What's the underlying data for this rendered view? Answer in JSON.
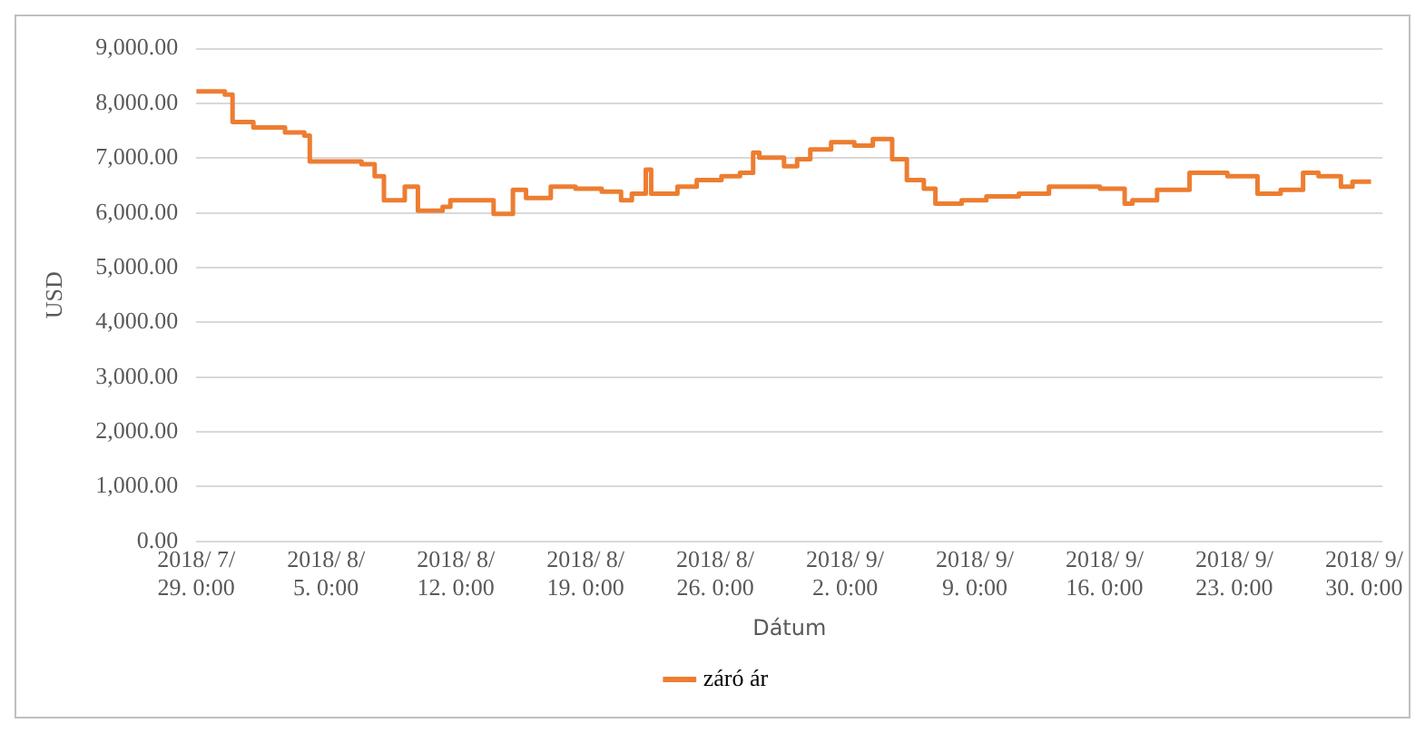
{
  "chart_data": {
    "type": "step",
    "xlabel": "Dátum",
    "ylabel": "USD",
    "x": [
      "2018-07-29T00:00",
      "2018-07-30T13:00",
      "2018-07-30T23:00",
      "2018-08-01T02:00",
      "2018-08-02T19:00",
      "2018-08-03T20:00",
      "2018-08-04T03:00",
      "2018-08-05T14:00",
      "2018-08-06T22:00",
      "2018-08-07T15:00",
      "2018-08-08T03:00",
      "2018-08-09T06:00",
      "2018-08-09T23:00",
      "2018-08-11T07:00",
      "2018-08-11T17:00",
      "2018-08-13T01:00",
      "2018-08-14T01:00",
      "2018-08-15T02:00",
      "2018-08-15T19:00",
      "2018-08-17T03:00",
      "2018-08-18T11:00",
      "2018-08-19T21:00",
      "2018-08-20T22:00",
      "2018-08-21T12:00",
      "2018-08-22T06:00",
      "2018-08-22T13:00",
      "2018-08-23T23:00",
      "2018-08-25T00:00",
      "2018-08-26T08:00",
      "2018-08-27T08:00",
      "2018-08-28T01:00",
      "2018-08-28T09:00",
      "2018-08-29T17:00",
      "2018-08-30T10:00",
      "2018-08-31T03:00",
      "2018-09-01T06:00",
      "2018-09-02T12:00",
      "2018-09-03T12:00",
      "2018-09-04T13:00",
      "2018-09-05T08:00",
      "2018-09-06T06:00",
      "2018-09-06T21:00",
      "2018-09-08T07:00",
      "2018-09-09T15:00",
      "2018-09-11T09:00",
      "2018-09-13T00:00",
      "2018-09-14T01:00",
      "2018-09-15T18:00",
      "2018-09-17T02:00",
      "2018-09-17T12:00",
      "2018-09-18T20:00",
      "2018-09-20T14:00",
      "2018-09-21T10:00",
      "2018-09-22T15:00",
      "2018-09-24T06:00",
      "2018-09-25T12:00",
      "2018-09-26T17:00",
      "2018-09-27T13:00",
      "2018-09-28T18:00",
      "2018-09-29T09:00",
      "2018-09-30T09:00"
    ],
    "series": [
      {
        "name": "záró ár",
        "color": "#ed7d31",
        "values": [
          8220,
          8160,
          7660,
          7560,
          7470,
          7410,
          6940,
          6940,
          6890,
          6670,
          6230,
          6480,
          6040,
          6110,
          6230,
          6230,
          5980,
          6420,
          6270,
          6480,
          6440,
          6390,
          6230,
          6350,
          6790,
          6350,
          6480,
          6600,
          6670,
          6730,
          7100,
          7010,
          6850,
          6980,
          7160,
          7290,
          7230,
          7350,
          6980,
          6600,
          6440,
          6170,
          6230,
          6300,
          6350,
          6480,
          6480,
          6440,
          6170,
          6230,
          6420,
          6730,
          6730,
          6670,
          6350,
          6420,
          6730,
          6670,
          6480,
          6570,
          6570
        ]
      }
    ],
    "xlim": [
      "2018-07-29T00:00",
      "2018-10-01T00:00"
    ],
    "xticks": [
      {
        "value": "2018-07-29T00:00",
        "label": "2018/ 7/ 29. 0:00"
      },
      {
        "value": "2018-08-05T00:00",
        "label": "2018/ 8/ 5. 0:00"
      },
      {
        "value": "2018-08-12T00:00",
        "label": "2018/ 8/ 12. 0:00"
      },
      {
        "value": "2018-08-19T00:00",
        "label": "2018/ 8/ 19. 0:00"
      },
      {
        "value": "2018-08-26T00:00",
        "label": "2018/ 8/ 26. 0:00"
      },
      {
        "value": "2018-09-02T00:00",
        "label": "2018/ 9/ 2. 0:00"
      },
      {
        "value": "2018-09-09T00:00",
        "label": "2018/ 9/ 9. 0:00"
      },
      {
        "value": "2018-09-16T00:00",
        "label": "2018/ 9/ 16. 0:00"
      },
      {
        "value": "2018-09-23T00:00",
        "label": "2018/ 9/ 23. 0:00"
      },
      {
        "value": "2018-09-30T00:00",
        "label": "2018/ 9/ 30. 0:00"
      }
    ],
    "ylim": [
      0,
      9000
    ],
    "yticks": [
      {
        "value": 0,
        "label": "0.00"
      },
      {
        "value": 1000,
        "label": "1,000.00"
      },
      {
        "value": 2000,
        "label": "2,000.00"
      },
      {
        "value": 3000,
        "label": "3,000.00"
      },
      {
        "value": 4000,
        "label": "4,000.00"
      },
      {
        "value": 5000,
        "label": "5,000.00"
      },
      {
        "value": 6000,
        "label": "6,000.00"
      },
      {
        "value": 7000,
        "label": "7,000.00"
      },
      {
        "value": 8000,
        "label": "8,000.00"
      },
      {
        "value": 9000,
        "label": "9,000.00"
      }
    ],
    "grid": "y",
    "legend": "bottom",
    "marker": "none",
    "line_style": "solid"
  }
}
